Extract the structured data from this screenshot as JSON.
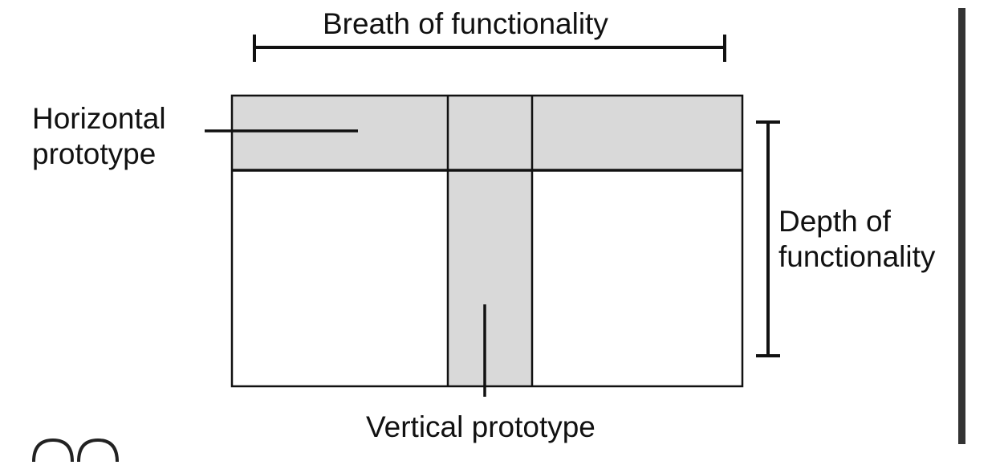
{
  "labels": {
    "breadth": "Breath of functionality",
    "horizontal_line1": "Horizontal",
    "horizontal_line2": "prototype",
    "depth_line1": "Depth of",
    "depth_line2": "functionality",
    "vertical": "Vertical prototype"
  },
  "colors": {
    "shade": "#d9d9d9",
    "stroke": "#111111",
    "background": "#ffffff"
  }
}
